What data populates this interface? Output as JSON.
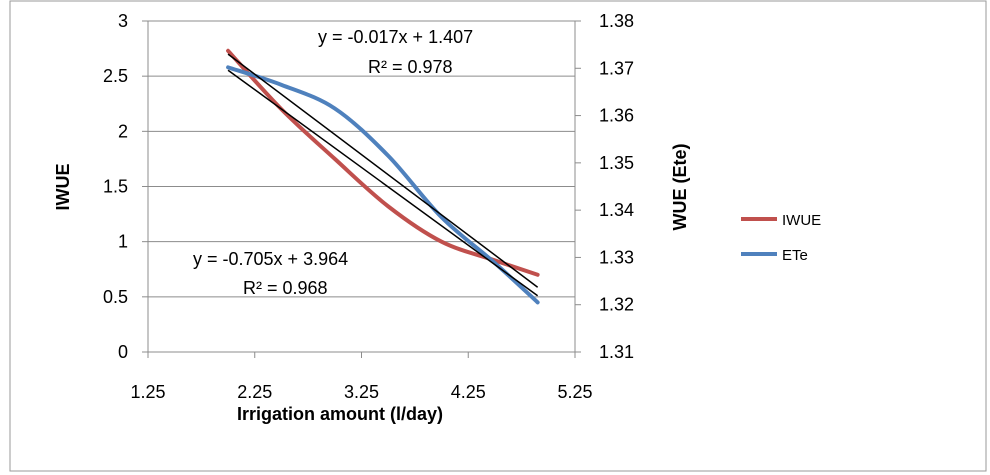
{
  "chart_data": {
    "type": "line",
    "xlabel": "Irrigation amount (l/day)",
    "ylabel_left": "IWUE",
    "ylabel_right": "WUE (Ete)",
    "x_ticks": [
      "1.25",
      "2.25",
      "3.25",
      "4.25",
      "5.25"
    ],
    "xlim": [
      1.25,
      5.25
    ],
    "y_left_ticks": [
      "0",
      "0.5",
      "1",
      "1.5",
      "2",
      "2.5",
      "3"
    ],
    "ylim_left": [
      0,
      3
    ],
    "y_right_ticks": [
      "1.31",
      "1.32",
      "1.33",
      "1.34",
      "1.35",
      "1.36",
      "1.37",
      "1.38"
    ],
    "ylim_right": [
      1.31,
      1.38
    ],
    "grid": "horizontal",
    "legend_position": "right",
    "series": [
      {
        "name": "IWUE",
        "axis": "left",
        "color": "#c0504d",
        "x": [
          2.0,
          2.5,
          3.0,
          3.5,
          4.0,
          4.5,
          4.9
        ],
        "y": [
          2.73,
          2.2,
          1.75,
          1.32,
          1.0,
          0.83,
          0.7
        ]
      },
      {
        "name": "ETe",
        "axis": "right",
        "color": "#4f81bd",
        "x": [
          2.0,
          2.5,
          3.0,
          3.5,
          4.0,
          4.5,
          4.9
        ],
        "y": [
          1.3702,
          1.3665,
          1.3615,
          1.3515,
          1.3385,
          1.3288,
          1.3205
        ]
      }
    ],
    "trendlines": [
      {
        "axis": "right",
        "slope": -0.017,
        "intercept": 1.407,
        "x_range": [
          2.0,
          4.9
        ],
        "color": "#000000"
      },
      {
        "axis": "left",
        "slope": -0.705,
        "intercept": 3.964,
        "x_range": [
          2.0,
          4.9
        ],
        "color": "#000000"
      }
    ],
    "annotations": [
      {
        "text": "y = -0.017x + 1.407"
      },
      {
        "text": "R² = 0.978"
      },
      {
        "text": "y = -0.705x + 3.964"
      },
      {
        "text": "R² = 0.968"
      }
    ]
  }
}
